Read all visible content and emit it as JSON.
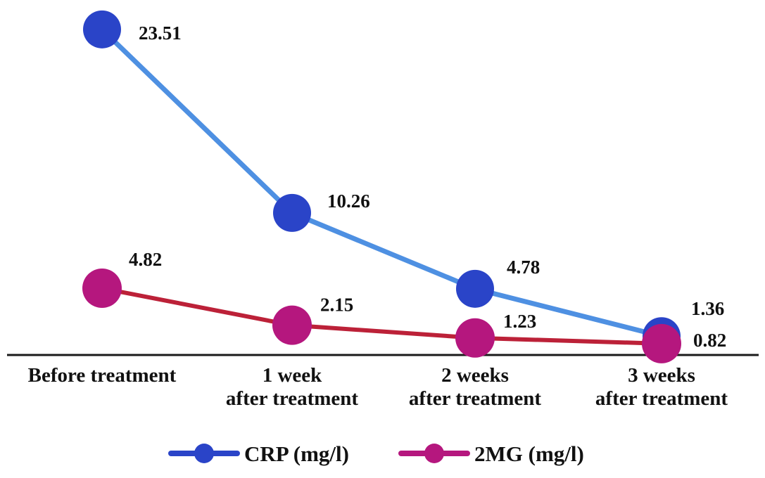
{
  "chart_data": {
    "type": "line",
    "categories": [
      [
        "Before treatment"
      ],
      [
        "1 week",
        "after treatment"
      ],
      [
        "2 weeks",
        "after treatment"
      ],
      [
        "3 weeks",
        "after treatment"
      ]
    ],
    "series": [
      {
        "name": "CRP (mg/l)",
        "values": [
          23.51,
          10.26,
          4.78,
          1.36
        ],
        "labels": [
          "23.51",
          "10.26",
          "4.78",
          "1.36"
        ],
        "marker_color": "#2a44c8",
        "line_color": "#4e90e2"
      },
      {
        "name": "2MG (mg/l)",
        "values": [
          4.82,
          2.15,
          1.23,
          0.82
        ],
        "labels": [
          "4.82",
          "2.15",
          "1.23",
          "0.82"
        ],
        "marker_color": "#b5177e",
        "line_color": "#bc2138"
      }
    ],
    "ylim": [
      0,
      25
    ],
    "grid": false,
    "legend_position": "bottom",
    "title": "",
    "xlabel": "",
    "ylabel": "",
    "axis_color": "#1a1a1a",
    "label_color": "#111111"
  }
}
